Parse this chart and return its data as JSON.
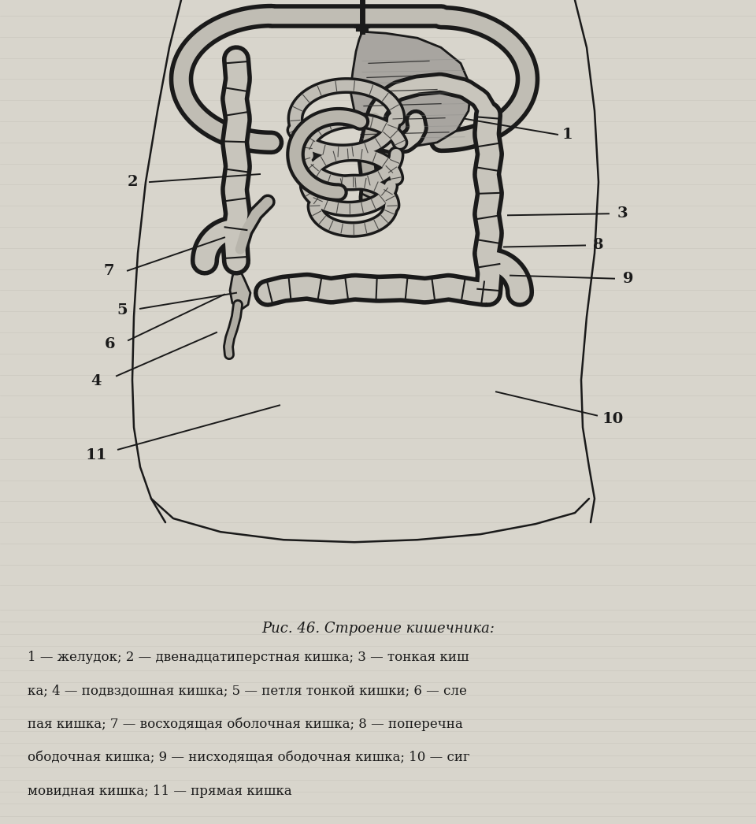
{
  "title": "Рис. 46. Строение кишечника:",
  "caption_lines": [
    "1 — желудок; 2 — двенадцатиперстная кишка; 3 — тонкая киш",
    "ка; 4 — подвздошная кишка; 5 — петля тонкой кишки; 6 — сле",
    "пая кишка; 7 — восходящая оболочная кишка; 8 — поперечна",
    "ободочная кишка; 9 — нисходящая ободочная кишка; 10 — сиг",
    "мовидная кишка; 11 — прямая кишка"
  ],
  "bg_color": "#d8d5cc",
  "draw_color": "#1a1a1a",
  "fill_color": "#d0cec6",
  "colon_fill": "#c8c5bc",
  "stomach_fill": "#b8b5ac",
  "fig_width": 9.6,
  "fig_height": 10.46,
  "dpi": 100
}
